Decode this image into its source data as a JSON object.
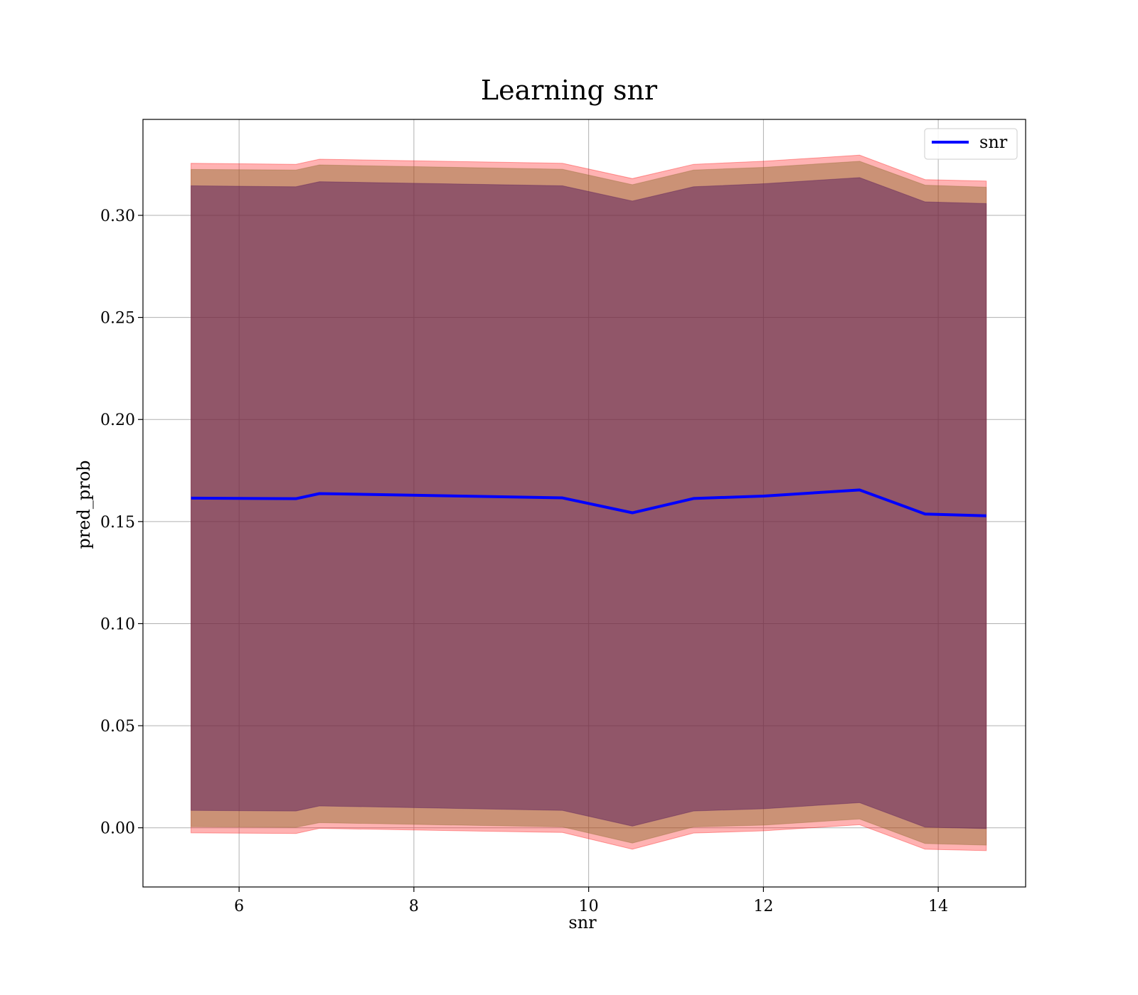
{
  "chart_data": {
    "type": "line",
    "title": "Learning snr",
    "xlabel": "snr",
    "ylabel": "pred_prob",
    "xlim": [
      4.9,
      15.0
    ],
    "ylim": [
      -0.029,
      0.347
    ],
    "xticks": [
      6,
      8,
      10,
      12,
      14
    ],
    "xtick_labels": [
      "6",
      "8",
      "10",
      "12",
      "14"
    ],
    "yticks": [
      0.0,
      0.05,
      0.1,
      0.15,
      0.2,
      0.25,
      0.3
    ],
    "ytick_labels": [
      "0.00",
      "0.05",
      "0.10",
      "0.15",
      "0.20",
      "0.25",
      "0.30"
    ],
    "grid": true,
    "legend_position": "top-right",
    "x": [
      5.45,
      6.65,
      6.92,
      9.7,
      10.5,
      11.2,
      12.0,
      13.1,
      13.85,
      14.55
    ],
    "series": [
      {
        "name": "snr",
        "color": "#0000ff",
        "values": [
          0.1615,
          0.1612,
          0.1637,
          0.1616,
          0.1543,
          0.1613,
          0.1625,
          0.1655,
          0.1537,
          0.1528
        ]
      }
    ],
    "bands": [
      {
        "color": "#ff0000",
        "opacity": 0.3,
        "upper": [
          0.3255,
          0.325,
          0.3275,
          0.3255,
          0.318,
          0.325,
          0.3265,
          0.3295,
          0.3175,
          0.3168
        ],
        "lower": [
          -0.0025,
          -0.0028,
          -0.0003,
          -0.0023,
          -0.0105,
          -0.0026,
          -0.0015,
          0.0015,
          -0.0105,
          -0.0112
        ]
      },
      {
        "color": "#8b6b2d",
        "opacity": 0.45,
        "upper": [
          0.3225,
          0.3222,
          0.3247,
          0.3226,
          0.315,
          0.3222,
          0.3235,
          0.3265,
          0.3148,
          0.3138
        ],
        "lower": [
          0.0005,
          0.0002,
          0.0025,
          0.0004,
          -0.0075,
          0.0004,
          0.0013,
          0.0043,
          -0.0077,
          -0.0085
        ]
      },
      {
        "color": "#4b0d5a",
        "opacity": 0.45,
        "upper": [
          0.3145,
          0.314,
          0.3165,
          0.3145,
          0.307,
          0.314,
          0.3155,
          0.3185,
          0.3066,
          0.3058
        ],
        "lower": [
          0.0085,
          0.0082,
          0.0107,
          0.0085,
          0.0008,
          0.0082,
          0.0093,
          0.0123,
          0.0003,
          -0.0004
        ]
      }
    ]
  }
}
